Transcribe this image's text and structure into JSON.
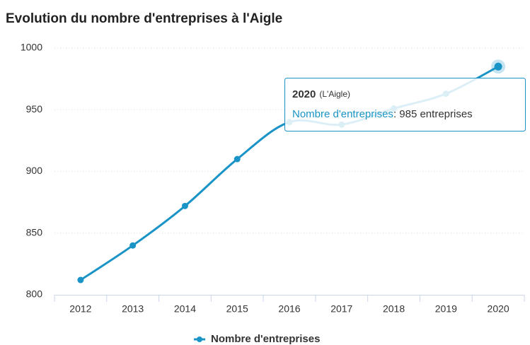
{
  "chart_data": {
    "type": "line",
    "title": "Evolution du nombre d'entreprises à l'Aigle",
    "categories": [
      "2012",
      "2013",
      "2014",
      "2015",
      "2016",
      "2017",
      "2018",
      "2019",
      "2020"
    ],
    "series": [
      {
        "name": "Nombre d'entreprises",
        "color": "#1a94c6",
        "values": [
          812,
          840,
          872,
          910,
          940,
          938,
          951,
          963,
          985
        ]
      }
    ],
    "ylim": [
      800,
      1000
    ],
    "yticks": [
      800,
      850,
      900,
      950,
      1000
    ],
    "grid": true,
    "legend": "bottom",
    "tooltip": {
      "location": "(L'Aigle)",
      "value_label": ": 985 entreprises"
    }
  }
}
